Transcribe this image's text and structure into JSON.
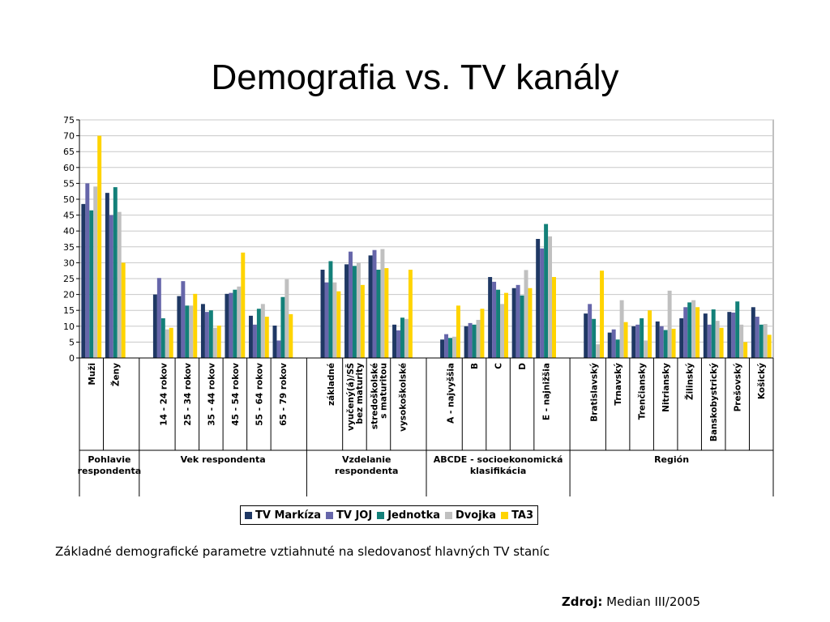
{
  "title": "Demografia vs. TV kanály",
  "caption": "Základné demografické parametre vztiahnuté na sledovanosť hlavných TV staníc",
  "source": {
    "label": "Zdroj:",
    "value": "Median III/2005"
  },
  "colors": {
    "TV Markíza": "#1f3864",
    "TV JOJ": "#6666aa",
    "Jednotka": "#138079",
    "Dvojka": "#c0c0c0",
    "TA3": "#ffd400"
  },
  "chart_data": {
    "type": "bar",
    "ylim": [
      0,
      75
    ],
    "yticks": [
      0,
      5,
      10,
      15,
      20,
      25,
      30,
      35,
      40,
      45,
      50,
      55,
      60,
      65,
      70,
      75
    ],
    "grid": true,
    "legend_position": "bottom",
    "series": [
      {
        "name": "TV Markíza",
        "color": "#1f3864"
      },
      {
        "name": "TV JOJ",
        "color": "#6666aa"
      },
      {
        "name": "Jednotka",
        "color": "#138079"
      },
      {
        "name": "Dvojka",
        "color": "#c0c0c0"
      },
      {
        "name": "TA3",
        "color": "#ffd400"
      }
    ],
    "groups": [
      {
        "label": "Pohlavie respondenta",
        "categories": [
          {
            "name": "Muži",
            "values": [
              48.5,
              55,
              46.5,
              54,
              70
            ]
          },
          {
            "name": "Ženy",
            "values": [
              52,
              45,
              53.8,
              46,
              30
            ]
          }
        ]
      },
      {
        "label": "Vek respondenta",
        "categories": [
          {
            "name": "14 - 24 rokov",
            "values": [
              20,
              25.2,
              12.5,
              9,
              9.5
            ]
          },
          {
            "name": "25 - 34 rokov",
            "values": [
              19.5,
              24.2,
              16.5,
              16.5,
              20.2
            ]
          },
          {
            "name": "35 - 44 rokov",
            "values": [
              17,
              14.5,
              15,
              9.5,
              10.2
            ]
          },
          {
            "name": "45 - 54 rokov",
            "values": [
              20.2,
              20.5,
              21.5,
              22.5,
              33.2
            ]
          },
          {
            "name": "55 - 64 rokov",
            "values": [
              13.3,
              10.5,
              15.5,
              17,
              13
            ]
          },
          {
            "name": "65 - 79 rokov",
            "values": [
              10.2,
              5.5,
              19.2,
              24.8,
              13.8
            ]
          }
        ]
      },
      {
        "label": "Vzdelanie respondenta",
        "categories": [
          {
            "name": "základné",
            "values": [
              27.8,
              23.8,
              30.5,
              23.8,
              21
            ]
          },
          {
            "name": "vyučený(á)/SŠ bez maturity",
            "values": [
              29.5,
              33.5,
              29,
              30,
              23
            ]
          },
          {
            "name": "stredoškolské s maturitou",
            "values": [
              32.3,
              34,
              27.8,
              34.3,
              28.3
            ]
          },
          {
            "name": "vysokoškolské",
            "values": [
              10.5,
              8.7,
              12.7,
              12.3,
              27.8
            ]
          }
        ]
      },
      {
        "label": "ABCDE - socioekonomická klasifikácia",
        "categories": [
          {
            "name": "A - najvyššia",
            "values": [
              5.8,
              7.5,
              6.3,
              6.7,
              16.5
            ]
          },
          {
            "name": "B",
            "values": [
              10,
              11,
              10.5,
              12,
              15.5
            ]
          },
          {
            "name": "C",
            "values": [
              25.5,
              24,
              21.5,
              17,
              20.5
            ]
          },
          {
            "name": "D",
            "values": [
              22,
              23,
              19.7,
              27.7,
              22
            ]
          },
          {
            "name": "E - najnižšia",
            "values": [
              37.5,
              34.5,
              42.2,
              38.3,
              25.5
            ]
          }
        ]
      },
      {
        "label": "Región",
        "categories": [
          {
            "name": "Bratislavský",
            "values": [
              14,
              17,
              12.3,
              4.3,
              27.5
            ]
          },
          {
            "name": "Trnavský",
            "values": [
              8,
              9,
              5.8,
              18.2,
              11.3
            ]
          },
          {
            "name": "Trenčiansky",
            "values": [
              10,
              10.5,
              12.5,
              5.5,
              15
            ]
          },
          {
            "name": "Nitriansky",
            "values": [
              11.5,
              10,
              8.8,
              21.2,
              9.2
            ]
          },
          {
            "name": "Žilinský",
            "values": [
              12.5,
              16,
              17.5,
              18.2,
              16
            ]
          },
          {
            "name": "Banskobystrický",
            "values": [
              14,
              10.5,
              15.3,
              11.7,
              9.5
            ]
          },
          {
            "name": "Prešovský",
            "values": [
              14.5,
              14.3,
              17.8,
              10.5,
              5
            ]
          },
          {
            "name": "Košický",
            "values": [
              16,
              13,
              10.5,
              10.7,
              7.3
            ]
          }
        ]
      }
    ]
  }
}
